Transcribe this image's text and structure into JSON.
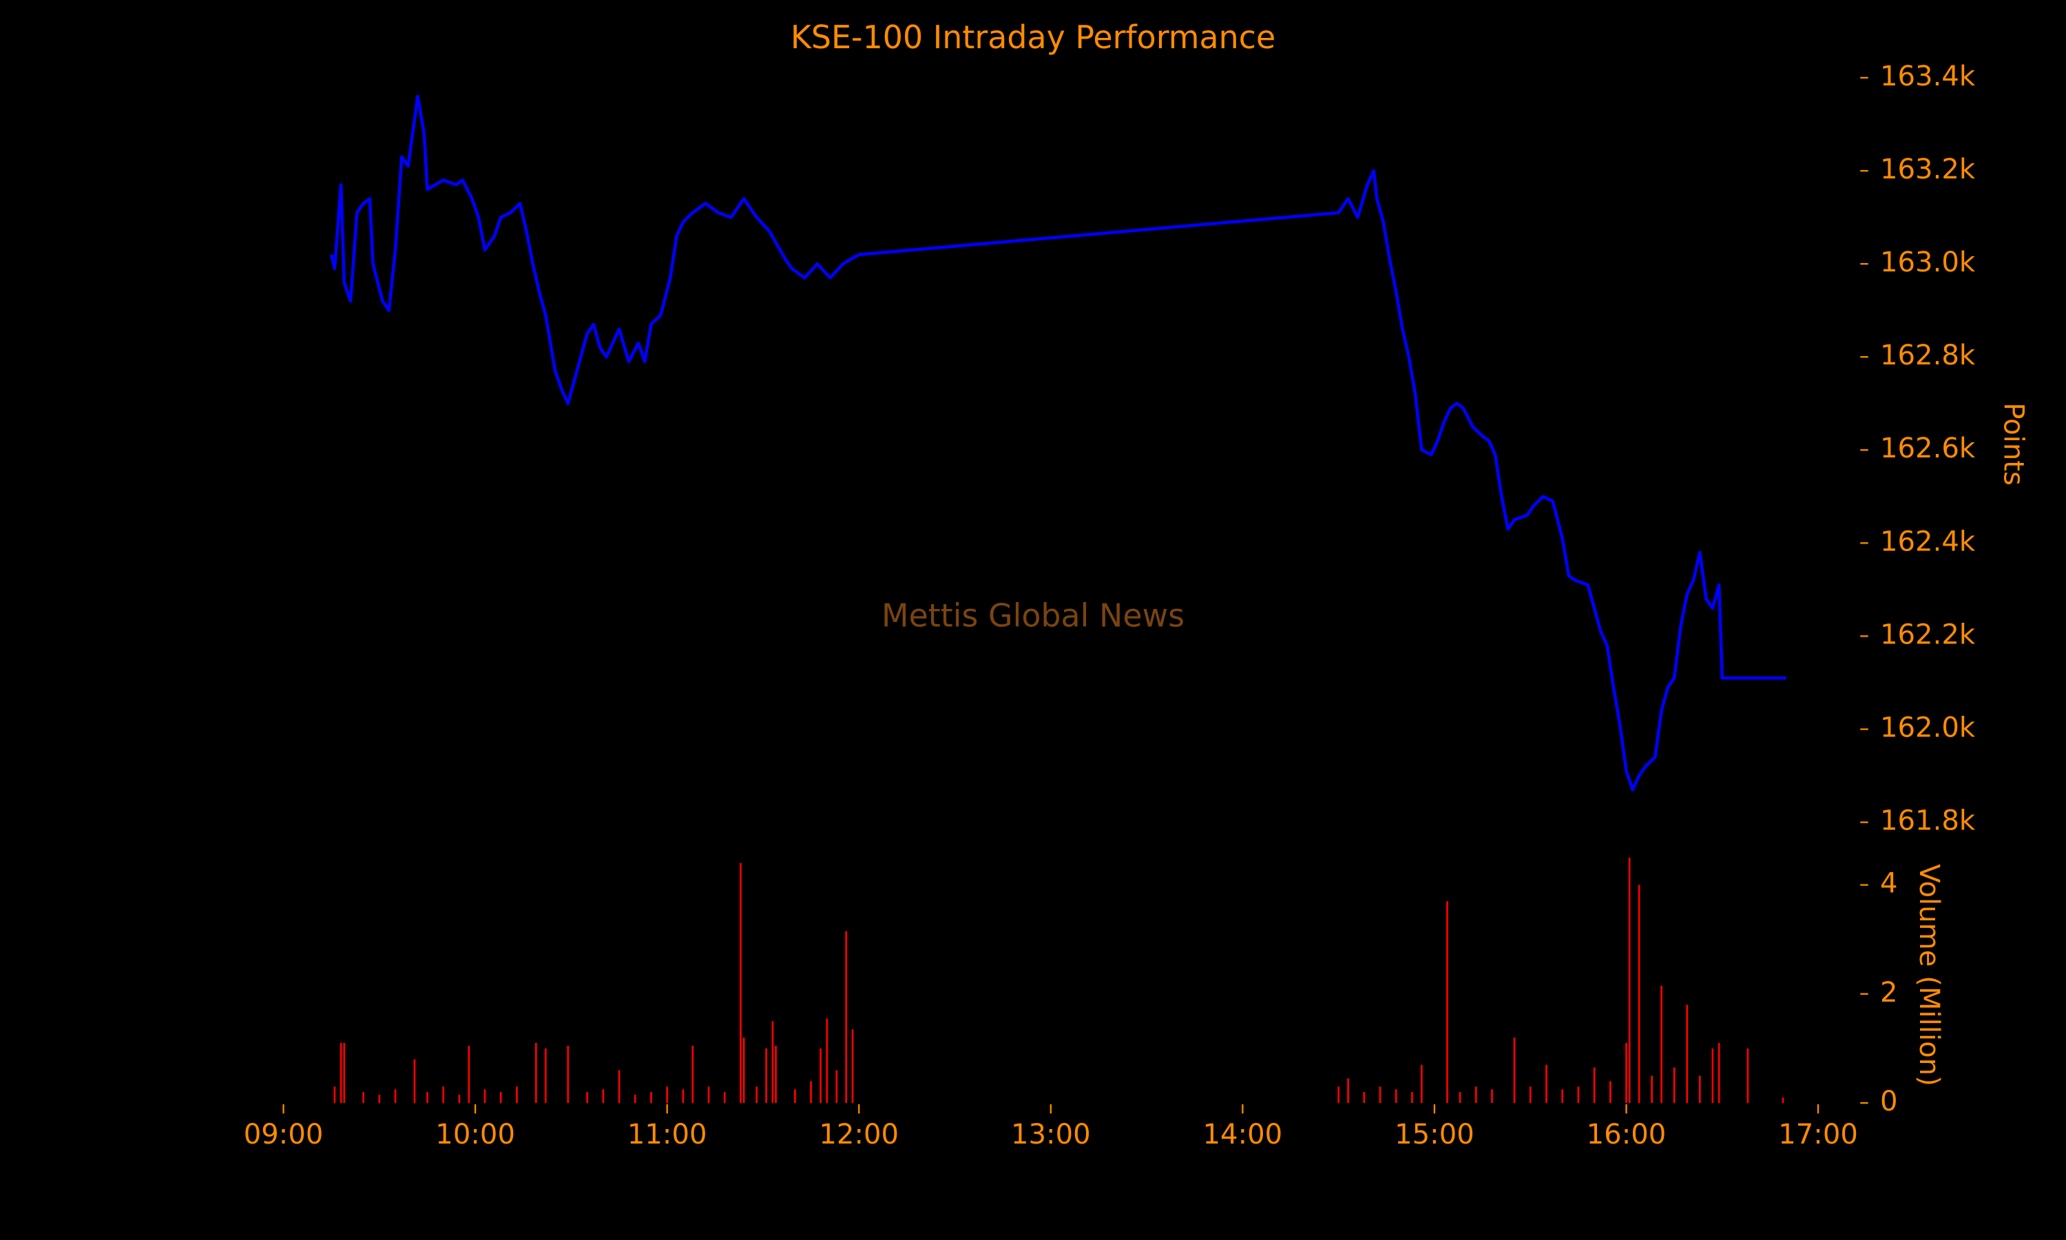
{
  "chart_data": [
    {
      "type": "line",
      "title": "KSE-100 Intraday Performance",
      "watermark": "Mettis Global News",
      "ylabel": "Points",
      "color": "#0000ff",
      "x": [
        "09:15",
        "09:16",
        "09:18",
        "09:19",
        "09:21",
        "09:23",
        "09:25",
        "09:27",
        "09:28",
        "09:31",
        "09:33",
        "09:35",
        "09:37",
        "09:39",
        "09:42",
        "09:44",
        "09:45",
        "09:50",
        "09:54",
        "09:56",
        "09:59",
        "10:01",
        "10:03",
        "10:06",
        "10:08",
        "10:11",
        "10:14",
        "10:16",
        "10:18",
        "10:20",
        "10:22",
        "10:25",
        "10:27",
        "10:29",
        "10:31",
        "10:33",
        "10:35",
        "10:37",
        "10:39",
        "10:41",
        "10:43",
        "10:45",
        "10:48",
        "10:51",
        "10:53",
        "10:55",
        "10:58",
        "11:01",
        "11:03",
        "11:05",
        "11:08",
        "11:12",
        "11:16",
        "11:20",
        "11:24",
        "11:28",
        "11:32",
        "11:37",
        "11:39",
        "11:43",
        "11:47",
        "11:51",
        "11:55",
        "12:00",
        "14:30",
        "14:33",
        "14:36",
        "14:39",
        "14:41",
        "14:42",
        "14:44",
        "14:46",
        "14:48",
        "14:50",
        "14:52",
        "14:54",
        "14:56",
        "14:59",
        "15:01",
        "15:03",
        "15:05",
        "15:07",
        "15:09",
        "15:12",
        "15:15",
        "15:17",
        "15:19",
        "15:21",
        "15:23",
        "15:25",
        "15:29",
        "15:31",
        "15:34",
        "15:37",
        "15:40",
        "15:42",
        "15:44",
        "15:48",
        "15:50",
        "15:52",
        "15:54",
        "15:56",
        "15:58",
        "16:00",
        "16:02",
        "16:04",
        "16:06",
        "16:09",
        "16:11",
        "16:13",
        "16:15",
        "16:17",
        "16:19",
        "16:21",
        "16:23",
        "16:25",
        "16:27",
        "16:29",
        "16:30",
        "16:50"
      ],
      "values": [
        163020,
        162990,
        163170,
        162960,
        162920,
        163110,
        163130,
        163140,
        163000,
        162920,
        162900,
        163030,
        163230,
        163210,
        163360,
        163280,
        163160,
        163180,
        163170,
        163180,
        163140,
        163100,
        163030,
        163060,
        163100,
        163110,
        163130,
        163070,
        163000,
        162940,
        162890,
        162770,
        162730,
        162700,
        162750,
        162800,
        162850,
        162870,
        162820,
        162800,
        162830,
        162860,
        162790,
        162830,
        162790,
        162870,
        162890,
        162970,
        163060,
        163090,
        163110,
        163130,
        163110,
        163100,
        163140,
        163100,
        163070,
        163010,
        162990,
        162970,
        163000,
        162970,
        163000,
        163020,
        163110,
        163140,
        163100,
        163170,
        163200,
        163140,
        163090,
        163010,
        162940,
        162860,
        162800,
        162720,
        162600,
        162590,
        162620,
        162660,
        162690,
        162700,
        162690,
        162650,
        162630,
        162620,
        162590,
        162500,
        162430,
        162450,
        162460,
        162480,
        162500,
        162490,
        162410,
        162330,
        162320,
        162310,
        162260,
        162210,
        162180,
        162090,
        162010,
        161910,
        161870,
        161900,
        161920,
        161940,
        162040,
        162090,
        162110,
        162220,
        162290,
        162320,
        162380,
        162280,
        162260,
        162310,
        162110,
        162110
      ],
      "xlim": [
        "09:00",
        "17:00"
      ],
      "ylim": [
        161800,
        163400
      ],
      "yticks": [
        {
          "value": 161800,
          "label": "161.8k"
        },
        {
          "value": 162000,
          "label": "162.0k"
        },
        {
          "value": 162200,
          "label": "162.2k"
        },
        {
          "value": 162400,
          "label": "162.4k"
        },
        {
          "value": 162600,
          "label": "162.6k"
        },
        {
          "value": 162800,
          "label": "162.8k"
        },
        {
          "value": 163000,
          "label": "163.0k"
        },
        {
          "value": 163200,
          "label": "163.2k"
        },
        {
          "value": 163400,
          "label": "163.4k"
        }
      ]
    },
    {
      "type": "bar",
      "ylabel": "Volume (Million)",
      "color": "#ff0000",
      "x": [
        "09:16",
        "09:18",
        "09:19",
        "09:25",
        "09:30",
        "09:35",
        "09:41",
        "09:45",
        "09:50",
        "09:55",
        "09:58",
        "10:03",
        "10:08",
        "10:13",
        "10:19",
        "10:22",
        "10:29",
        "10:35",
        "10:40",
        "10:45",
        "10:50",
        "10:55",
        "11:00",
        "11:05",
        "11:08",
        "11:13",
        "11:18",
        "11:23",
        "11:24",
        "11:28",
        "11:31",
        "11:33",
        "11:34",
        "11:40",
        "11:45",
        "11:48",
        "11:50",
        "11:53",
        "11:56",
        "11:58",
        "14:30",
        "14:33",
        "14:38",
        "14:43",
        "14:48",
        "14:53",
        "14:56",
        "15:04",
        "15:08",
        "15:13",
        "15:18",
        "15:25",
        "15:30",
        "15:35",
        "15:40",
        "15:45",
        "15:50",
        "15:55",
        "16:00",
        "16:01",
        "16:04",
        "16:08",
        "16:11",
        "16:15",
        "16:19",
        "16:23",
        "16:27",
        "16:29",
        "16:38",
        "16:49"
      ],
      "values": [
        0.3,
        1.1,
        1.1,
        0.2,
        0.15,
        0.25,
        0.8,
        0.2,
        0.3,
        0.15,
        1.05,
        0.25,
        0.2,
        0.3,
        1.1,
        1.0,
        1.05,
        0.2,
        0.25,
        0.6,
        0.15,
        0.2,
        0.3,
        0.25,
        1.05,
        0.3,
        0.2,
        4.4,
        1.2,
        0.3,
        1.0,
        1.5,
        1.05,
        0.25,
        0.4,
        1.0,
        1.55,
        0.6,
        3.15,
        1.35,
        0.3,
        0.45,
        0.2,
        0.3,
        0.25,
        0.2,
        0.7,
        3.7,
        0.2,
        0.3,
        0.25,
        1.2,
        0.3,
        0.7,
        0.25,
        0.3,
        0.65,
        0.4,
        1.1,
        4.5,
        4.0,
        0.5,
        2.15,
        0.65,
        1.8,
        0.5,
        1.0,
        1.1,
        1.0,
        0.1
      ],
      "xlim": [
        "09:00",
        "17:00"
      ],
      "ylim": [
        0,
        4.4
      ],
      "yticks": [
        0,
        2,
        4
      ],
      "xticks": [
        "09:00",
        "10:00",
        "11:00",
        "12:00",
        "13:00",
        "14:00",
        "15:00",
        "16:00",
        "17:00"
      ]
    }
  ]
}
